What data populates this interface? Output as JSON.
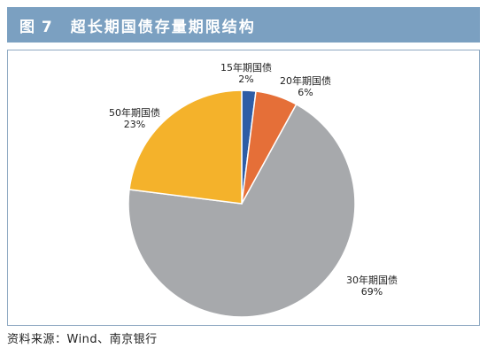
{
  "header": {
    "figure_number": "图 7",
    "title": "超长期国债存量期限结构"
  },
  "source": "资料来源：Wind、南京银行",
  "chart_data": {
    "type": "pie",
    "title": "超长期国债存量期限结构",
    "slices": [
      {
        "label": "15年期国债",
        "pct_label": "2%",
        "value": 2,
        "color": "#2e5da6"
      },
      {
        "label": "20年期国债",
        "pct_label": "6%",
        "value": 6,
        "color": "#e56f38"
      },
      {
        "label": "30年期国债",
        "pct_label": "69%",
        "value": 69,
        "color": "#a7a9ac"
      },
      {
        "label": "50年期国债",
        "pct_label": "23%",
        "value": 23,
        "color": "#f4b22b"
      }
    ],
    "start": "12 o'clock",
    "direction": "clockwise"
  }
}
